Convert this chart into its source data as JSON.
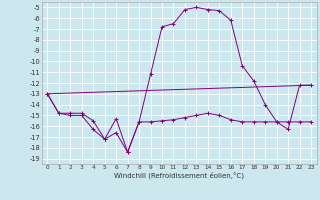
{
  "xlabel": "Windchill (Refroidissement éolien,°C)",
  "background_color": "#cce8ee",
  "grid_color": "#ffffff",
  "line_color": "#800080",
  "xlim": [
    -0.5,
    23.5
  ],
  "ylim": [
    -19.5,
    -4.5
  ],
  "xticks": [
    0,
    1,
    2,
    3,
    4,
    5,
    6,
    7,
    8,
    9,
    10,
    11,
    12,
    13,
    14,
    15,
    16,
    17,
    18,
    19,
    20,
    21,
    22,
    23
  ],
  "yticks": [
    -5,
    -6,
    -7,
    -8,
    -9,
    -10,
    -11,
    -12,
    -13,
    -14,
    -15,
    -16,
    -17,
    -18,
    -19
  ],
  "series1_x": [
    0,
    1,
    2,
    3,
    4,
    5,
    6,
    7,
    8,
    9,
    10,
    11,
    12,
    13,
    14,
    15,
    16,
    17,
    18,
    19,
    20,
    21,
    22,
    23
  ],
  "series1_y": [
    -13.0,
    -14.8,
    -15.0,
    -15.0,
    -16.3,
    -17.2,
    -15.3,
    -18.4,
    -15.6,
    -15.6,
    -15.5,
    -15.4,
    -15.2,
    -15.0,
    -14.8,
    -15.0,
    -15.4,
    -15.6,
    -15.6,
    -15.6,
    -15.6,
    -15.6,
    -15.6,
    -15.6
  ],
  "series2_x": [
    0,
    1,
    2,
    3,
    4,
    5,
    6,
    7,
    8,
    9,
    10,
    11,
    12,
    13,
    14,
    15,
    16,
    17,
    18,
    19,
    20,
    21,
    22,
    23
  ],
  "series2_y": [
    -13.0,
    -14.8,
    -14.8,
    -14.8,
    -15.5,
    -17.2,
    -16.6,
    -18.4,
    -15.6,
    -11.2,
    -6.8,
    -6.5,
    -5.2,
    -5.0,
    -5.2,
    -5.3,
    -6.2,
    -10.4,
    -11.8,
    -14.0,
    -15.6,
    -16.3,
    -12.2,
    -12.2
  ],
  "series3_x": [
    0,
    23
  ],
  "series3_y": [
    -13.0,
    -12.2
  ]
}
